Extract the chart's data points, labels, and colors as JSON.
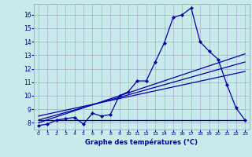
{
  "xlabel": "Graphe des températures (°C)",
  "bg_color": "#c8eaea",
  "grid_color": "#aaaacc",
  "line_color": "#0000aa",
  "xlim": [
    -0.5,
    23.5
  ],
  "ylim": [
    7.5,
    16.8
  ],
  "xticks": [
    0,
    1,
    2,
    3,
    4,
    5,
    6,
    7,
    8,
    9,
    10,
    11,
    12,
    13,
    14,
    15,
    16,
    17,
    18,
    19,
    20,
    21,
    22,
    23
  ],
  "yticks": [
    8,
    9,
    10,
    11,
    12,
    13,
    14,
    15,
    16
  ],
  "temp_data": [
    [
      0,
      7.8
    ],
    [
      1,
      7.9
    ],
    [
      2,
      8.2
    ],
    [
      3,
      8.3
    ],
    [
      4,
      8.4
    ],
    [
      5,
      7.9
    ],
    [
      6,
      8.7
    ],
    [
      7,
      8.5
    ],
    [
      8,
      8.6
    ],
    [
      9,
      10.0
    ],
    [
      10,
      10.3
    ],
    [
      11,
      11.1
    ],
    [
      12,
      11.1
    ],
    [
      13,
      12.5
    ],
    [
      14,
      13.9
    ],
    [
      15,
      15.8
    ],
    [
      16,
      16.0
    ],
    [
      17,
      16.5
    ],
    [
      18,
      14.0
    ],
    [
      19,
      13.3
    ],
    [
      20,
      12.7
    ],
    [
      21,
      10.8
    ],
    [
      22,
      9.1
    ],
    [
      23,
      8.2
    ]
  ],
  "reg_line1": [
    [
      0,
      8.0
    ],
    [
      23,
      13.1
    ]
  ],
  "reg_line2": [
    [
      0,
      8.2
    ],
    [
      23,
      12.5
    ]
  ],
  "reg_line3": [
    [
      0,
      8.5
    ],
    [
      23,
      11.8
    ]
  ],
  "hline_y": 8.2,
  "hline_xstart": 0,
  "hline_xend": 23
}
